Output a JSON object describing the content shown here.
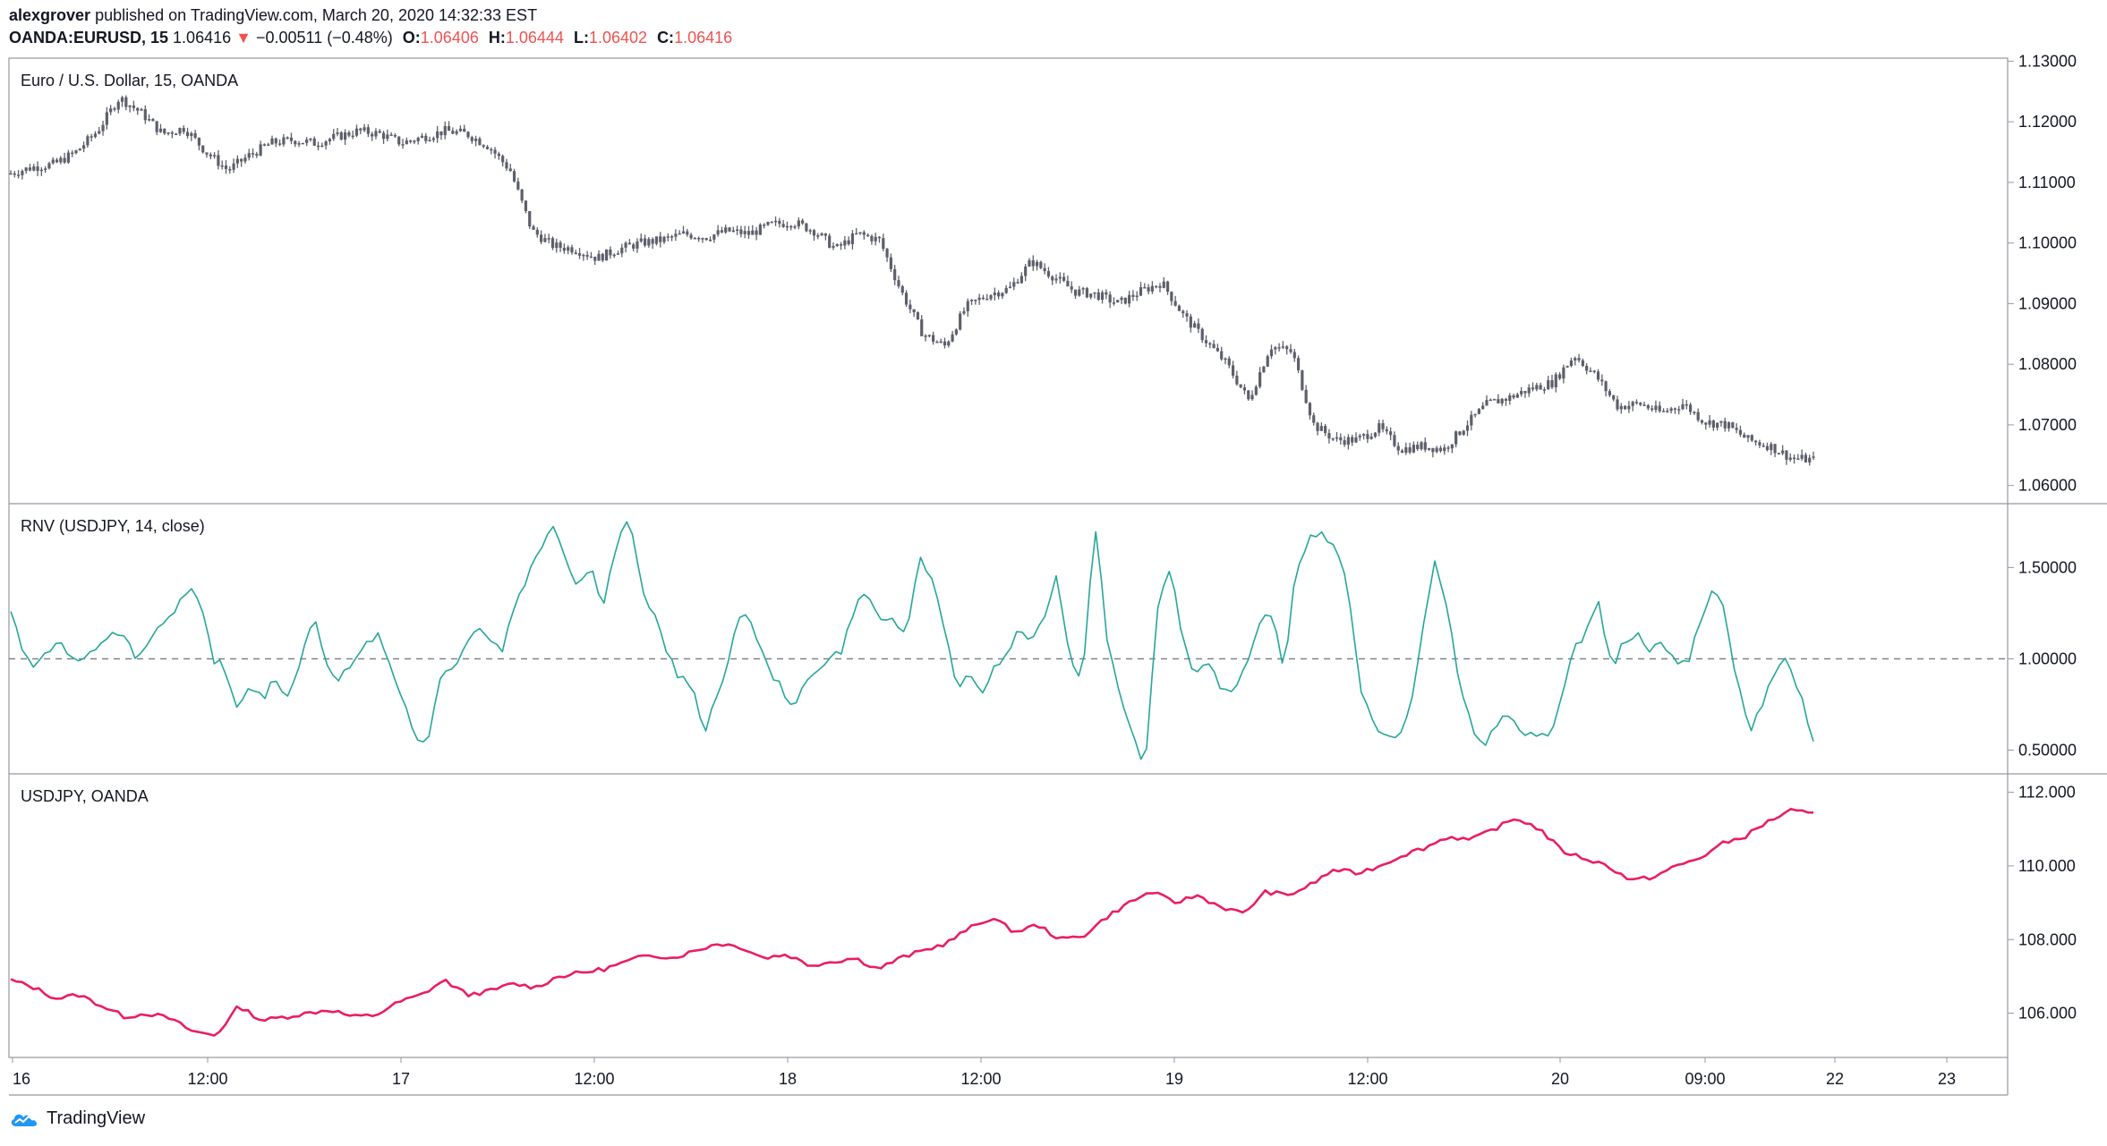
{
  "header": {
    "author": "alexgrover",
    "published_text": "published on TradingView.com, March 20, 2020 14:32:33 EST",
    "symbol": "OANDA:EURUSD, 15",
    "last_price": "1.06416",
    "change_arrow": "▼",
    "change": "−0.00511 (−0.48%)",
    "o_label": "O:",
    "o_value": "1.06406",
    "h_label": "H:",
    "h_value": "1.06444",
    "l_label": "L:",
    "l_value": "1.06402",
    "c_label": "C:",
    "c_value": "1.06416"
  },
  "colors": {
    "candle": "#5d606b",
    "rnv_line": "#26a69a",
    "usdjpy_line": "#e91e63",
    "border": "#9598a1",
    "axis_text": "#131722",
    "down": "#ef5350"
  },
  "footer": {
    "brand": "TradingView",
    "logo_icon": "tradingview-cloud-icon"
  },
  "x_axis_labels": [
    "16",
    "12:00",
    "17",
    "12:00",
    "18",
    "12:00",
    "19",
    "12:00",
    "20",
    "09:00",
    "22",
    "23"
  ],
  "chart_data": [
    {
      "type": "candlestick",
      "title": "Euro / U.S. Dollar, 15, OANDA",
      "y_ticks": [
        "1.13000",
        "1.12000",
        "1.11000",
        "1.10000",
        "1.09000",
        "1.08000",
        "1.07000",
        "1.06000"
      ],
      "ylim": [
        1.057,
        1.1305
      ],
      "x": [
        "16",
        "12:00",
        "17",
        "12:00",
        "18",
        "12:00",
        "19",
        "12:00",
        "20",
        "09:00"
      ],
      "close_path": [
        1.1115,
        1.1125,
        1.113,
        1.115,
        1.1185,
        1.124,
        1.1215,
        1.118,
        1.119,
        1.115,
        1.112,
        1.1145,
        1.1165,
        1.117,
        1.1165,
        1.1175,
        1.1185,
        1.118,
        1.1165,
        1.1175,
        1.1185,
        1.118,
        1.116,
        1.112,
        1.102,
        1.0995,
        1.099,
        1.0975,
        1.099,
        1.1,
        1.1005,
        1.1015,
        1.101,
        1.102,
        1.1015,
        1.103,
        1.1035,
        1.102,
        1.099,
        1.1015,
        1.1005,
        1.092,
        1.085,
        1.083,
        1.0895,
        1.0915,
        1.0925,
        1.097,
        1.0945,
        1.092,
        1.0915,
        1.09,
        1.092,
        1.0935,
        1.088,
        1.084,
        1.08,
        1.074,
        1.083,
        1.082,
        1.07,
        1.0675,
        1.0675,
        1.0695,
        1.066,
        1.0665,
        1.066,
        1.07,
        1.0735,
        1.0745,
        1.076,
        1.077,
        1.0815,
        1.078,
        1.073,
        1.0735,
        1.072,
        1.0735,
        1.0705,
        1.07,
        1.0675,
        1.0665,
        1.0645,
        1.0642
      ]
    },
    {
      "type": "line",
      "title": "RNV (USDJPY, 14, close)",
      "y_ticks": [
        "1.50000",
        "1.00000",
        "0.50000"
      ],
      "ylim": [
        0.37,
        1.85
      ],
      "reference_line": 1.0,
      "values": [
        1.25,
        1.05,
        0.95,
        1.05,
        1.1,
        0.98,
        1.0,
        1.05,
        1.15,
        1.12,
        0.98,
        1.08,
        1.2,
        1.25,
        1.38,
        1.35,
        1.0,
        0.95,
        0.7,
        0.85,
        0.78,
        0.9,
        0.78,
        1.0,
        1.25,
        0.98,
        0.9,
        0.95,
        1.05,
        1.15,
        1.0,
        0.8,
        0.6,
        0.5,
        0.9,
        0.95,
        1.05,
        1.2,
        1.1,
        1.05,
        1.3,
        1.45,
        1.6,
        1.75,
        1.55,
        1.4,
        1.5,
        1.3,
        1.6,
        1.78,
        1.4,
        1.25,
        1.05,
        0.9,
        0.85,
        0.6,
        0.8,
        1.0,
        1.3,
        1.15,
        0.95,
        0.85,
        0.75,
        0.85,
        0.95,
        1.0,
        1.05,
        1.3,
        1.35,
        1.2,
        1.25,
        1.1,
        1.55,
        1.45,
        1.2,
        0.85,
        0.9,
        0.8,
        0.95,
        1.05,
        1.15,
        1.1,
        1.25,
        1.45,
        1.0,
        0.9,
        1.75,
        1.1,
        0.8,
        0.6,
        0.4,
        1.3,
        1.5,
        1.1,
        0.9,
        1.0,
        0.8,
        0.85,
        0.95,
        1.2,
        1.25,
        0.95,
        1.5,
        1.65,
        1.7,
        1.6,
        1.45,
        0.85,
        0.65,
        0.6,
        0.55,
        0.7,
        1.15,
        1.55,
        1.25,
        0.85,
        0.6,
        0.55,
        0.65,
        0.7,
        0.55,
        0.6,
        0.55,
        0.8,
        1.05,
        1.15,
        1.3,
        0.95,
        1.1,
        1.15,
        1.05,
        1.1,
        1.0,
        0.95,
        1.2,
        1.4,
        1.25,
        0.85,
        0.6,
        0.75,
        0.95,
        1.0,
        0.8,
        0.55
      ]
    },
    {
      "type": "line",
      "title": "USDJPY, OANDA",
      "y_ticks": [
        "112.000",
        "110.000",
        "108.000",
        "106.000"
      ],
      "ylim": [
        104.8,
        112.5
      ],
      "values": [
        106.9,
        106.7,
        106.4,
        106.5,
        106.2,
        105.9,
        106.0,
        105.85,
        105.5,
        105.4,
        106.2,
        105.8,
        105.9,
        106.0,
        106.1,
        105.9,
        105.95,
        106.3,
        106.5,
        106.9,
        106.5,
        106.6,
        106.8,
        106.7,
        107.0,
        107.1,
        107.2,
        107.4,
        107.6,
        107.5,
        107.7,
        107.9,
        107.8,
        107.5,
        107.6,
        107.3,
        107.4,
        107.5,
        107.2,
        107.5,
        107.7,
        107.9,
        108.3,
        108.6,
        108.2,
        108.4,
        108.0,
        108.1,
        108.6,
        109.0,
        109.3,
        109.0,
        109.2,
        108.9,
        108.7,
        109.3,
        109.2,
        109.5,
        109.9,
        109.8,
        110.0,
        110.3,
        110.5,
        110.8,
        110.7,
        111.0,
        111.3,
        111.0,
        110.4,
        110.2,
        110.0,
        109.6,
        109.7,
        110.0,
        110.2,
        110.6,
        110.8,
        111.2,
        111.5,
        111.4
      ]
    }
  ]
}
